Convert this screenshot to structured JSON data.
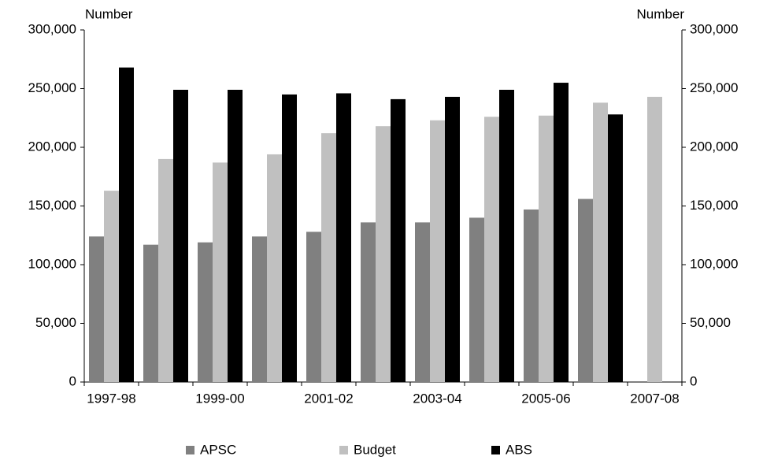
{
  "chart_data": {
    "type": "bar",
    "y_label": "Number",
    "y2_label": "Number",
    "categories": [
      "1997-98",
      null,
      "1999-00",
      null,
      "2001-02",
      null,
      "2003-04",
      null,
      "2005-06",
      null,
      "2007-08"
    ],
    "series": [
      {
        "name": "APSC",
        "color": "#808080",
        "values": [
          124000,
          117000,
          119000,
          124000,
          128000,
          136000,
          136000,
          140000,
          147000,
          156000,
          null
        ]
      },
      {
        "name": "Budget",
        "color": "#c0c0c0",
        "values": [
          163000,
          190000,
          187000,
          194000,
          212000,
          218000,
          223000,
          226000,
          227000,
          238000,
          243000
        ]
      },
      {
        "name": "ABS",
        "color": "#000000",
        "values": [
          268000,
          249000,
          249000,
          245000,
          246000,
          241000,
          243000,
          249000,
          255000,
          228000,
          null
        ]
      }
    ],
    "ylim": [
      0,
      300000
    ],
    "yticks": [
      0,
      {
        "value": 50000,
        "label": "50,000"
      },
      {
        "value": 100000,
        "label": "100,000"
      },
      {
        "value": 150000,
        "label": "150,000"
      },
      {
        "value": 200000,
        "label": "200,000"
      },
      {
        "value": 250000,
        "label": "250,000"
      },
      {
        "value": 300000,
        "label": "300,000"
      }
    ],
    "y2lim": [
      0,
      300000
    ],
    "y2ticks": [
      0,
      {
        "value": 50000,
        "label": "50,000"
      },
      {
        "value": 100000,
        "label": "100,000"
      },
      {
        "value": 150000,
        "label": "150,000"
      },
      {
        "value": 200000,
        "label": "200,000"
      },
      {
        "value": 250000,
        "label": "250,000"
      },
      {
        "value": 300000,
        "label": "300,000"
      }
    ],
    "grid": false,
    "legend": "bottom"
  }
}
